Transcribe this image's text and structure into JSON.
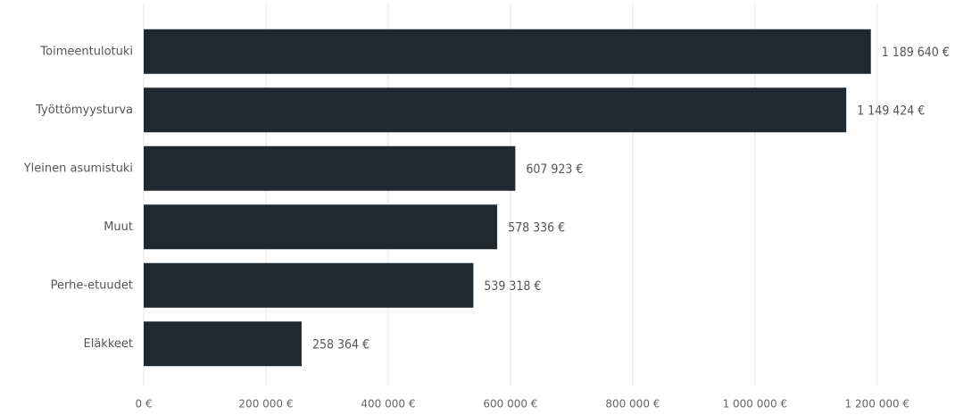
{
  "chart_data": {
    "type": "barh",
    "categories": [
      "Toimeentulotuki",
      "Työttömyysturva",
      "Yleinen asumistuki",
      "Muut",
      "Perhe-etuudet",
      "Eläkkeet"
    ],
    "values": [
      1189640,
      1149424,
      607923,
      578336,
      539318,
      258364
    ],
    "value_labels": [
      "1 189 640 €",
      "1 149 424 €",
      "607 923 €",
      "578 336 €",
      "539 318 €",
      "258 364 €"
    ],
    "color": "#1f2932",
    "xlim": [
      0,
      1320000
    ],
    "xticks": [
      {
        "value": 0,
        "label": "0 €"
      },
      {
        "value": 200000,
        "label": "200 000 €"
      },
      {
        "value": 400000,
        "label": "400 000 €"
      },
      {
        "value": 600000,
        "label": "600 000 €"
      },
      {
        "value": 800000,
        "label": "800 000 €"
      },
      {
        "value": 1000000,
        "label": "1 000 000 €"
      },
      {
        "value": 1200000,
        "label": "1 200 000 €"
      }
    ],
    "grid": true
  }
}
